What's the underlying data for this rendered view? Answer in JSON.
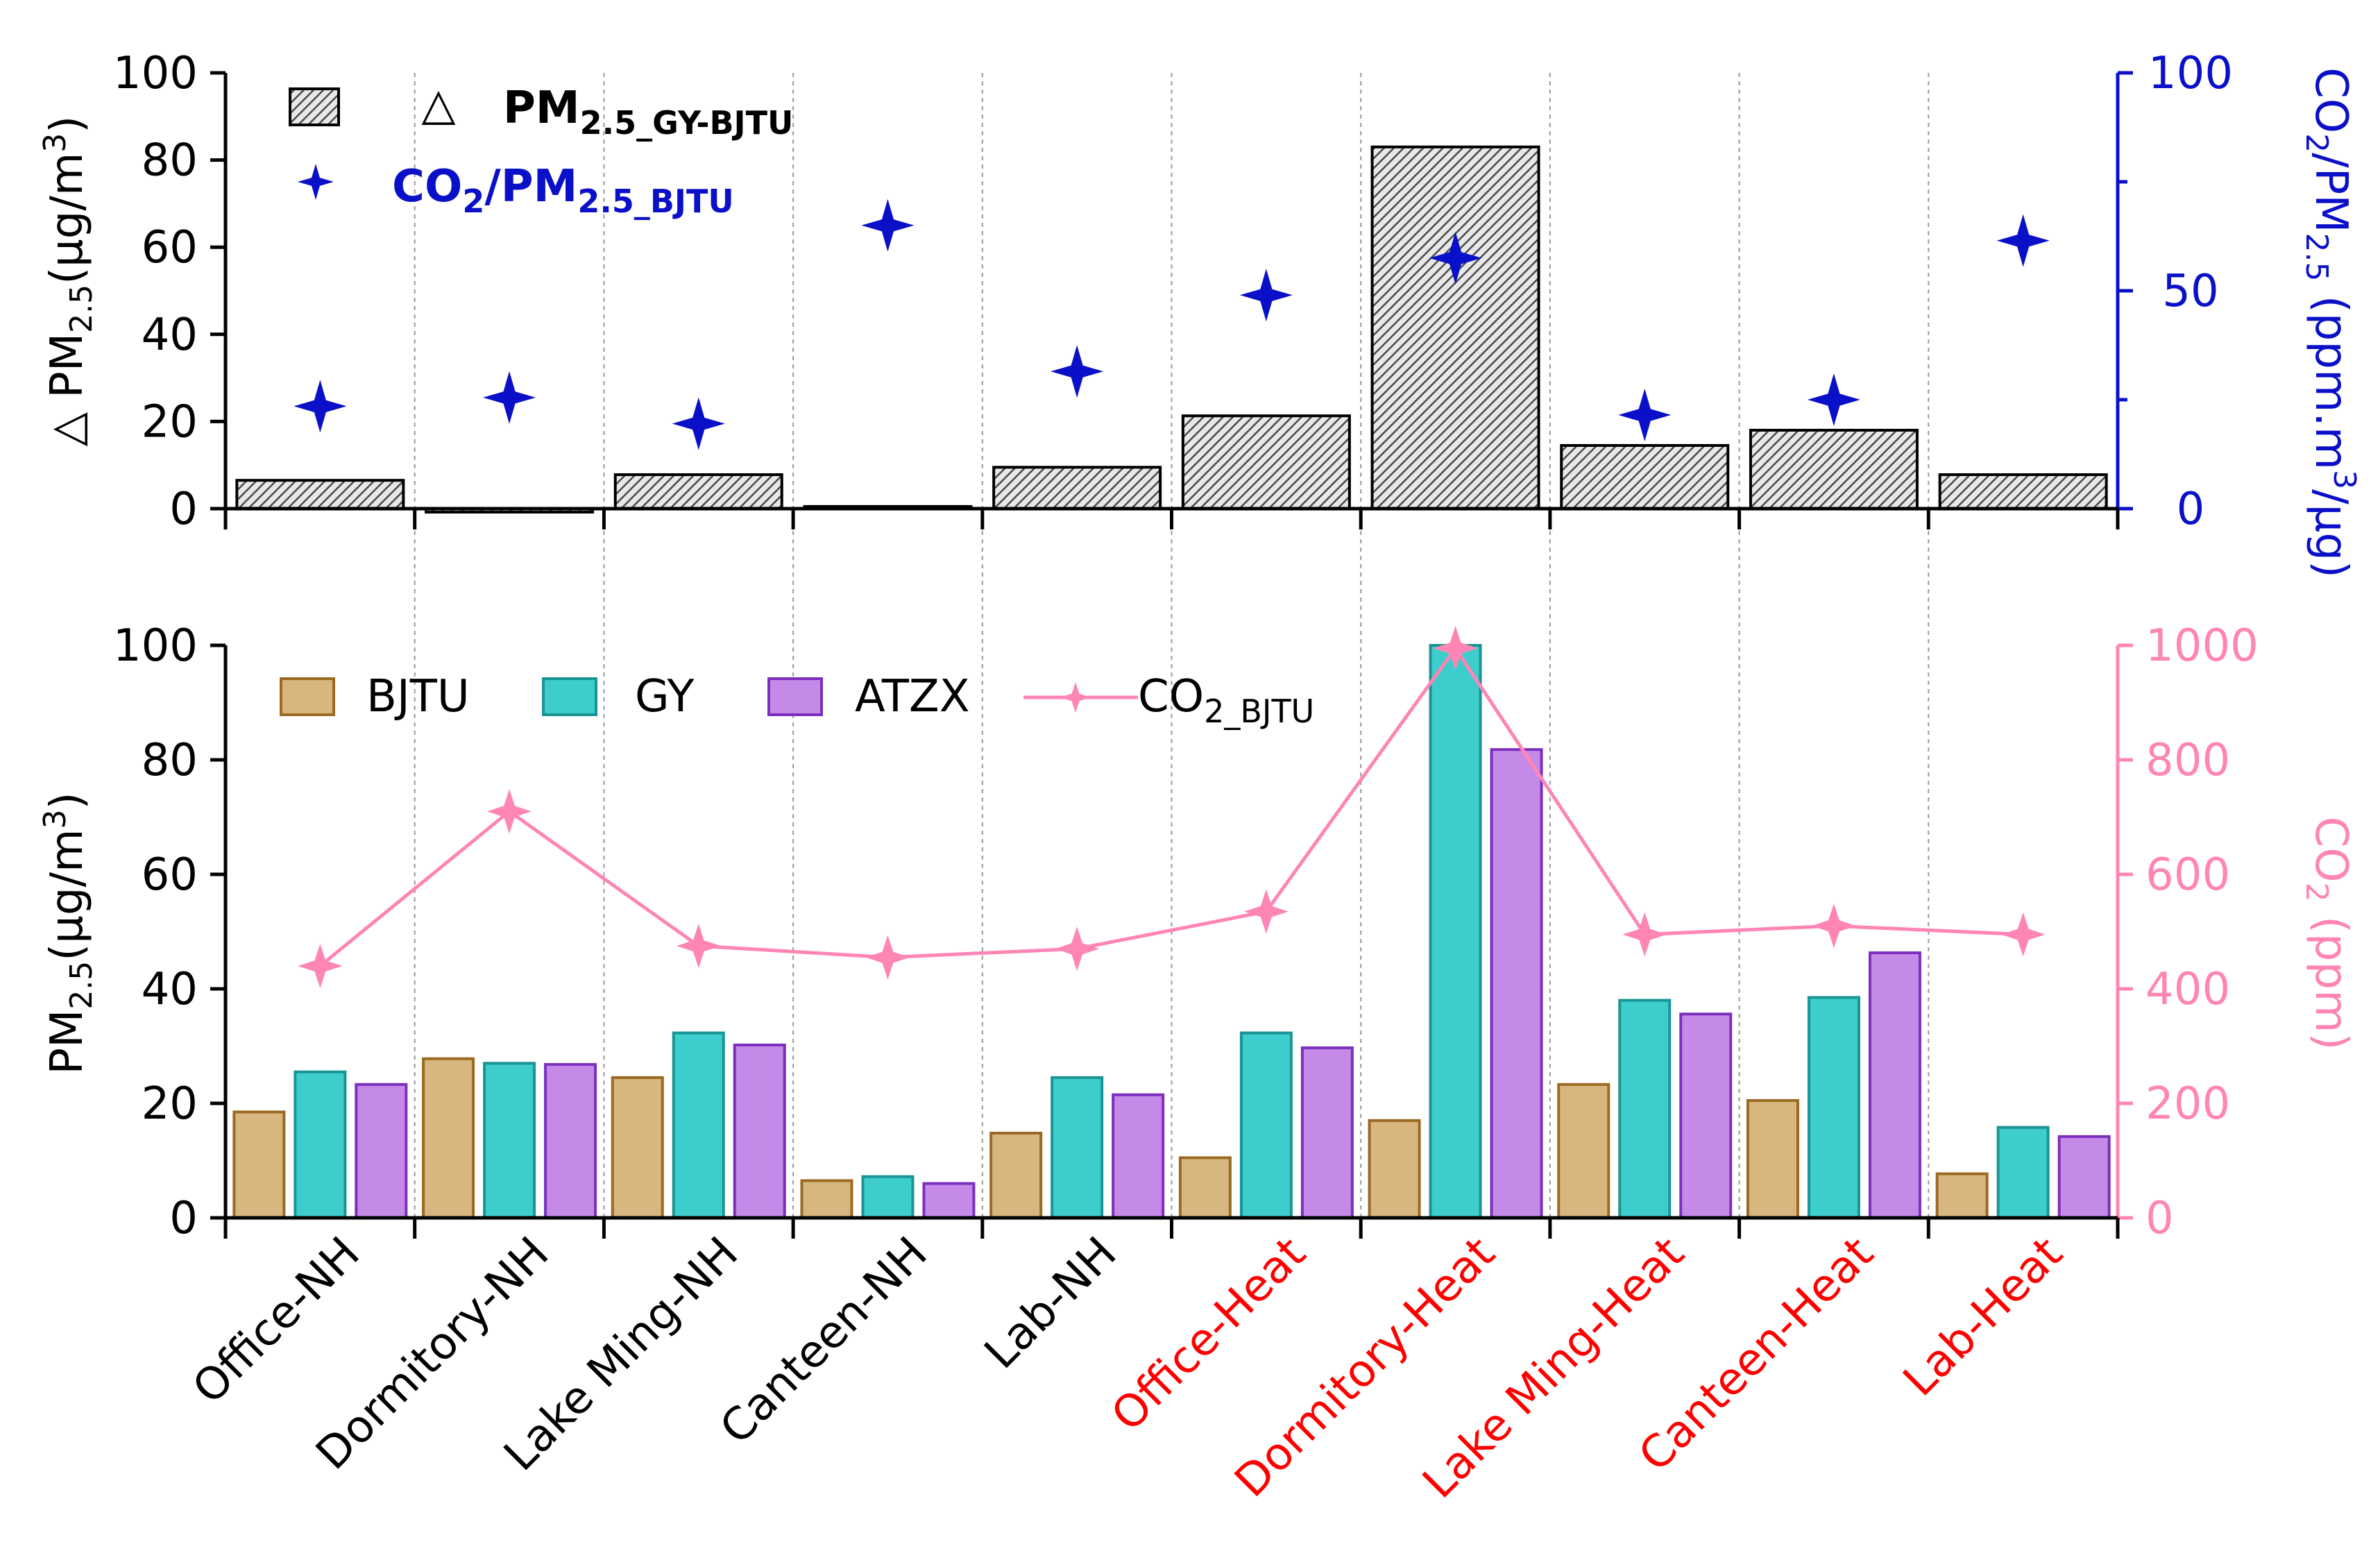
{
  "chart_data": [
    {
      "id": "top",
      "type": "bar+scatter",
      "categories": [
        "Office-NH",
        "Dormitory-NH",
        "Lake Ming-NH",
        "Canteen-NH",
        "Lab-NH",
        "Office-Heat",
        "Dormitory-Heat",
        "Lake Ming-Heat",
        "Canteen-Heat",
        "Lab-Heat"
      ],
      "category_colors": [
        "#000000",
        "#000000",
        "#000000",
        "#000000",
        "#000000",
        "#ff0000",
        "#ff0000",
        "#ff0000",
        "#ff0000",
        "#ff0000"
      ],
      "series": [
        {
          "name": "PM2.5_GY-BJTU",
          "kind": "bar",
          "axis": "left",
          "color": "#555555",
          "values": [
            6.5,
            -0.8,
            7.8,
            0.5,
            9.5,
            21.3,
            83.0,
            14.5,
            18.0,
            7.8
          ]
        },
        {
          "name": "CO2/PM2.5_BJTU",
          "kind": "marker",
          "axis": "right",
          "color": "#0a10c8",
          "values": [
            23.5,
            25.5,
            19.5,
            65.0,
            31.5,
            49.0,
            57.5,
            21.5,
            25.0,
            61.5
          ]
        }
      ],
      "ylim_left": [
        0,
        100
      ],
      "yticks_left": [
        0,
        20,
        40,
        60,
        80,
        100
      ],
      "ylim_right": [
        0,
        100
      ],
      "yticks_right": [
        0,
        50,
        100
      ],
      "ylabel_left": {
        "prefix": "△ PM",
        "sub": "2.5",
        "unit": "(μg/m",
        "sup": "3",
        "close": ")"
      },
      "ylabel_right": {
        "prefix": "CO",
        "sub1": "2",
        "mid": "/PM",
        "sub2": "2.5",
        "unit": " (ppm.m",
        "sup": "3",
        "tail": "/μg)",
        "color": "#0a10c8"
      },
      "legend": [
        {
          "symbol": "△",
          "main": "PM",
          "sub": "2.5_GY-BJTU"
        },
        {
          "main": "CO",
          "sub1": "2",
          "mid": "/PM",
          "sub2": "2.5_BJTU"
        }
      ]
    },
    {
      "id": "bottom",
      "type": "grouped-bar+line",
      "categories": [
        "Office-NH",
        "Dormitory-NH",
        "Lake Ming-NH",
        "Canteen-NH",
        "Lab-NH",
        "Office-Heat",
        "Dormitory-Heat",
        "Lake Ming-Heat",
        "Canteen-Heat",
        "Lab-Heat"
      ],
      "series": [
        {
          "name": "BJTU",
          "kind": "bar",
          "axis": "left",
          "fill": "#d7b67f",
          "stroke": "#9a6a22",
          "values": [
            18.5,
            27.8,
            24.5,
            6.5,
            14.8,
            10.5,
            17.0,
            23.3,
            20.5,
            7.7
          ]
        },
        {
          "name": "GY",
          "kind": "bar",
          "axis": "left",
          "fill": "#3ecdcd",
          "stroke": "#1a9494",
          "values": [
            25.5,
            27.0,
            32.3,
            7.2,
            24.5,
            32.3,
            100.0,
            38.0,
            38.5,
            15.8
          ]
        },
        {
          "name": "ATZX",
          "kind": "bar",
          "axis": "left",
          "fill": "#c58ae8",
          "stroke": "#7b2fbe",
          "values": [
            23.3,
            26.8,
            30.2,
            6.0,
            21.5,
            29.7,
            81.8,
            35.6,
            46.3,
            14.2
          ]
        },
        {
          "name": "CO2_BJTU",
          "kind": "line",
          "axis": "right",
          "color": "#ff85b4",
          "values": [
            440,
            710,
            475,
            455,
            470,
            535,
            995,
            495,
            510,
            495
          ]
        }
      ],
      "ylim_left": [
        0,
        100
      ],
      "yticks_left": [
        0,
        20,
        40,
        60,
        80,
        100
      ],
      "ylim_right": [
        0,
        1000
      ],
      "yticks_right": [
        0,
        200,
        400,
        600,
        800,
        1000
      ],
      "ylabel_left": {
        "prefix": "PM",
        "sub": "2.5",
        "unit": "(μg/m",
        "sup": "3",
        "close": ")"
      },
      "ylabel_right": {
        "prefix": "CO",
        "sub": "2",
        "tail": " (ppm)",
        "color": "#ff85b4"
      },
      "legend": [
        {
          "name": "BJTU"
        },
        {
          "name": "GY"
        },
        {
          "name": "ATZX"
        },
        {
          "main": "CO",
          "sub": "2_BJTU"
        }
      ]
    }
  ]
}
